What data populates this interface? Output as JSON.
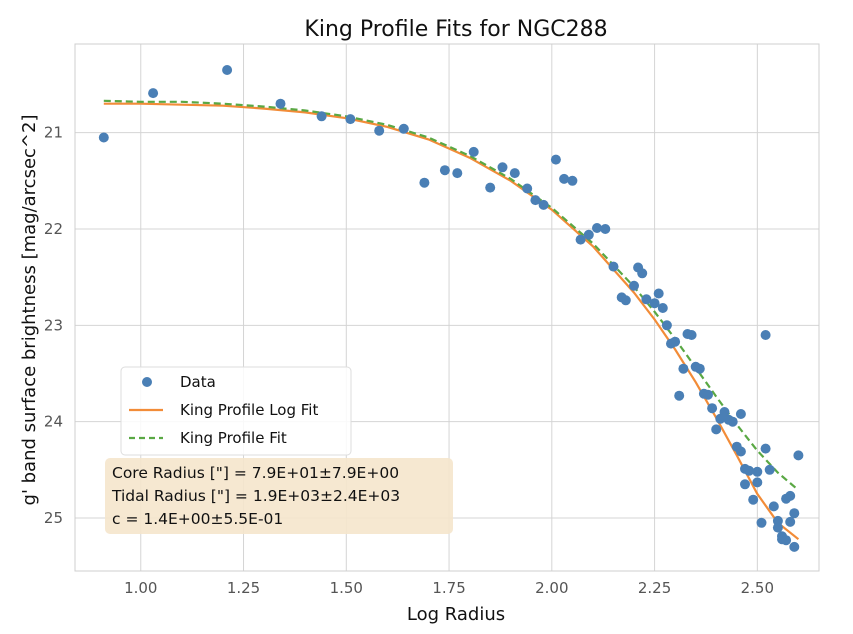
{
  "chart_data": {
    "type": "scatter",
    "title": "King Profile Fits for NGC288",
    "xlabel": "Log Radius",
    "ylabel": "g' band surface brightness [mag/arcsec^2]",
    "xlim": [
      0.84,
      2.65
    ],
    "ylim": [
      25.55,
      20.08
    ],
    "y_inverted": true,
    "grid": true,
    "x_ticks": [
      1.0,
      1.25,
      1.5,
      1.75,
      2.0,
      2.25,
      2.5
    ],
    "x_tick_labels": [
      "1.00",
      "1.25",
      "1.50",
      "1.75",
      "2.00",
      "2.25",
      "2.50"
    ],
    "y_ticks": [
      21,
      22,
      23,
      24,
      25
    ],
    "y_tick_labels": [
      "21",
      "22",
      "23",
      "24",
      "25"
    ],
    "colors": {
      "data": "#4a7fb5",
      "log_fit": "#f28c38",
      "fit": "#5aa844",
      "textbox": "#f5e6cc"
    },
    "series": [
      {
        "name": "Data",
        "kind": "scatter",
        "x": [
          0.91,
          1.03,
          1.21,
          1.34,
          1.44,
          1.51,
          1.58,
          1.64,
          1.69,
          1.74,
          1.77,
          1.81,
          1.85,
          1.88,
          1.91,
          1.94,
          1.96,
          1.98,
          2.01,
          2.03,
          2.05,
          2.07,
          2.09,
          2.11,
          2.13,
          2.15,
          2.17,
          2.18,
          2.2,
          2.21,
          2.22,
          2.23,
          2.25,
          2.26,
          2.27,
          2.28,
          2.29,
          2.3,
          2.31,
          2.32,
          2.33,
          2.34,
          2.35,
          2.36,
          2.37,
          2.38,
          2.39,
          2.4,
          2.41,
          2.42,
          2.43,
          2.44,
          2.45,
          2.46,
          2.46,
          2.47,
          2.47,
          2.48,
          2.49,
          2.5,
          2.5,
          2.51,
          2.52,
          2.52,
          2.53,
          2.54,
          2.55,
          2.55,
          2.56,
          2.56,
          2.57,
          2.57,
          2.58,
          2.58,
          2.59,
          2.59,
          2.6
        ],
        "y": [
          21.05,
          20.59,
          20.35,
          20.7,
          20.83,
          20.86,
          20.98,
          20.96,
          21.52,
          21.39,
          21.42,
          21.2,
          21.57,
          21.36,
          21.42,
          21.58,
          21.7,
          21.75,
          21.28,
          21.48,
          21.5,
          22.11,
          22.06,
          21.99,
          22.0,
          22.39,
          22.71,
          22.74,
          22.59,
          22.4,
          22.46,
          22.73,
          22.77,
          22.67,
          22.82,
          23.0,
          23.19,
          23.17,
          23.73,
          23.45,
          23.09,
          23.1,
          23.43,
          23.45,
          23.71,
          23.72,
          23.86,
          24.08,
          23.97,
          23.9,
          23.98,
          24.0,
          24.26,
          24.31,
          23.92,
          24.65,
          24.49,
          24.51,
          24.81,
          24.52,
          24.63,
          25.05,
          24.28,
          23.1,
          24.5,
          24.88,
          25.03,
          25.1,
          25.19,
          25.22,
          25.23,
          24.8,
          25.04,
          24.77,
          25.3,
          24.95,
          24.35
        ]
      },
      {
        "name": "King Profile Log Fit",
        "kind": "line",
        "style": "solid",
        "x": [
          0.91,
          1.0,
          1.1,
          1.2,
          1.3,
          1.4,
          1.5,
          1.6,
          1.7,
          1.8,
          1.9,
          2.0,
          2.1,
          2.2,
          2.25,
          2.3,
          2.35,
          2.4,
          2.45,
          2.5,
          2.55,
          2.6
        ],
        "y": [
          20.7,
          20.7,
          20.71,
          20.72,
          20.75,
          20.79,
          20.85,
          20.94,
          21.07,
          21.26,
          21.5,
          21.8,
          22.18,
          22.66,
          22.94,
          23.25,
          23.59,
          23.96,
          24.35,
          24.75,
          25.05,
          25.22
        ]
      },
      {
        "name": "King Profile Fit",
        "kind": "line",
        "style": "dashed",
        "x": [
          0.91,
          1.0,
          1.1,
          1.2,
          1.3,
          1.4,
          1.5,
          1.6,
          1.7,
          1.8,
          1.9,
          2.0,
          2.1,
          2.2,
          2.25,
          2.3,
          2.35,
          2.4,
          2.45,
          2.5,
          2.55,
          2.6
        ],
        "y": [
          20.67,
          20.68,
          20.68,
          20.7,
          20.73,
          20.77,
          20.83,
          20.92,
          21.05,
          21.24,
          21.48,
          21.78,
          22.15,
          22.6,
          22.86,
          23.14,
          23.44,
          23.74,
          24.03,
          24.3,
          24.53,
          24.71
        ]
      }
    ],
    "legend": {
      "position": "lower-left",
      "entries": [
        "Data",
        "King Profile Log Fit",
        "King Profile Fit"
      ]
    },
    "annotation": {
      "lines": [
        "Core Radius [\"] = 7.9E+01±7.9E+00",
        "Tidal Radius [\"] = 1.9E+03±2.4E+03",
        "c = 1.4E+00±5.5E-01"
      ]
    }
  }
}
